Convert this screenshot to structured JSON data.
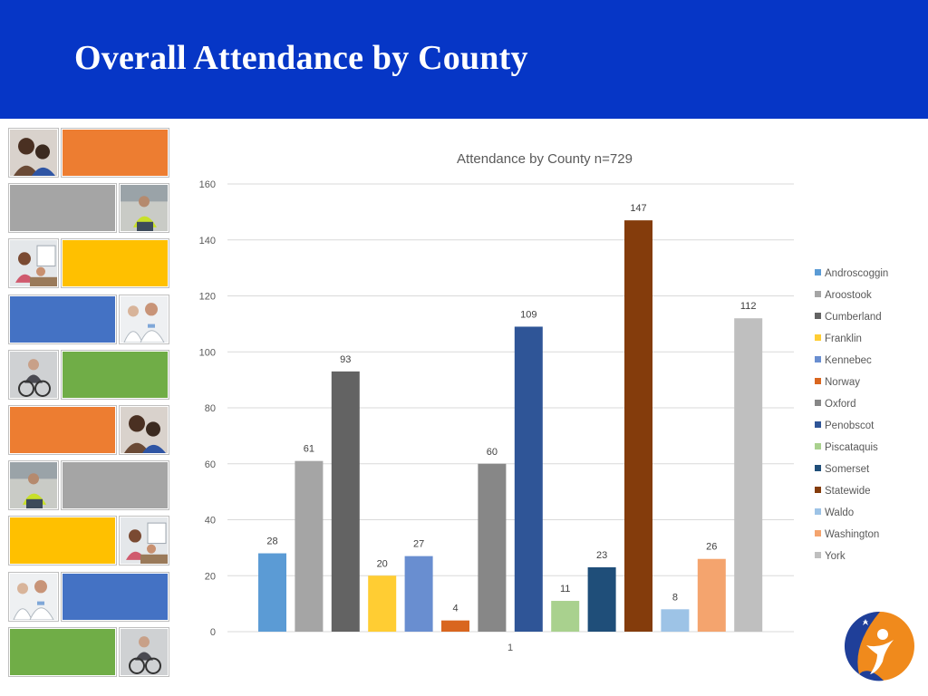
{
  "slide": {
    "title": "Overall Attendance by County"
  },
  "colors": {
    "header_bg": "#0636c6",
    "orange": "#ed7d31",
    "gray": "#a5a5a5",
    "yellow": "#ffc000",
    "blue": "#4472c4",
    "green": "#70ad47"
  },
  "mosaic": {
    "rows": [
      {
        "photo": "family-photo-icon",
        "color": "#ed7d31"
      },
      {
        "color": "#a5a5a5",
        "photo": "workers-photo-icon"
      },
      {
        "photo": "classroom-photo-icon",
        "color": "#ffc000"
      },
      {
        "color": "#4472c4",
        "photo": "medical-staff-photo-icon"
      },
      {
        "photo": "wheelchair-photo-icon",
        "color": "#70ad47"
      },
      {
        "photo": "family-photo-icon",
        "color": "#ed7d31"
      },
      {
        "color": "#a5a5a5",
        "photo": "workers-photo-icon"
      },
      {
        "photo": "classroom-photo-icon",
        "color": "#ffc000"
      },
      {
        "color": "#4472c4",
        "photo": "medical-staff-photo-icon"
      },
      {
        "photo": "wheelchair-photo-icon",
        "color": "#70ad47"
      }
    ]
  },
  "chart_data": {
    "type": "bar",
    "title": "Attendance by County n=729",
    "categories": [
      "1"
    ],
    "xlabel": "",
    "ylabel": "",
    "ylim": [
      0,
      160
    ],
    "yticks": [
      "0",
      "20",
      "40",
      "60",
      "80",
      "100",
      "120",
      "140",
      "160"
    ],
    "grid": true,
    "legend": "right",
    "series": [
      {
        "name": "Androscoggin",
        "values": [
          28
        ],
        "color": "#5b9bd5"
      },
      {
        "name": "Aroostook",
        "values": [
          61
        ],
        "color": "#a5a5a5"
      },
      {
        "name": "Cumberland",
        "values": [
          93
        ],
        "color": "#636363"
      },
      {
        "name": "Franklin",
        "values": [
          20
        ],
        "color": "#ffcd33"
      },
      {
        "name": "Kennebec",
        "values": [
          27
        ],
        "color": "#698ed0"
      },
      {
        "name": "Norway",
        "values": [
          4
        ],
        "color": "#d9661f"
      },
      {
        "name": "Oxford",
        "values": [
          60
        ],
        "color": "#878787"
      },
      {
        "name": "Penobscot",
        "values": [
          109
        ],
        "color": "#2f5597"
      },
      {
        "name": "Piscataquis",
        "values": [
          11
        ],
        "color": "#a9d18e"
      },
      {
        "name": "Somerset",
        "values": [
          23
        ],
        "color": "#1f4e79"
      },
      {
        "name": "Statewide",
        "values": [
          147
        ],
        "color": "#843c0c"
      },
      {
        "name": "Waldo",
        "values": [
          8
        ],
        "color": "#9dc3e6"
      },
      {
        "name": "Washington",
        "values": [
          26
        ],
        "color": "#f4a46e"
      },
      {
        "name": "York",
        "values": [
          112
        ],
        "color": "#bfbfbf"
      }
    ]
  },
  "logo": {
    "icon": "agency-logo-icon",
    "colors": [
      "#f08a1c",
      "#1f3f99"
    ]
  }
}
